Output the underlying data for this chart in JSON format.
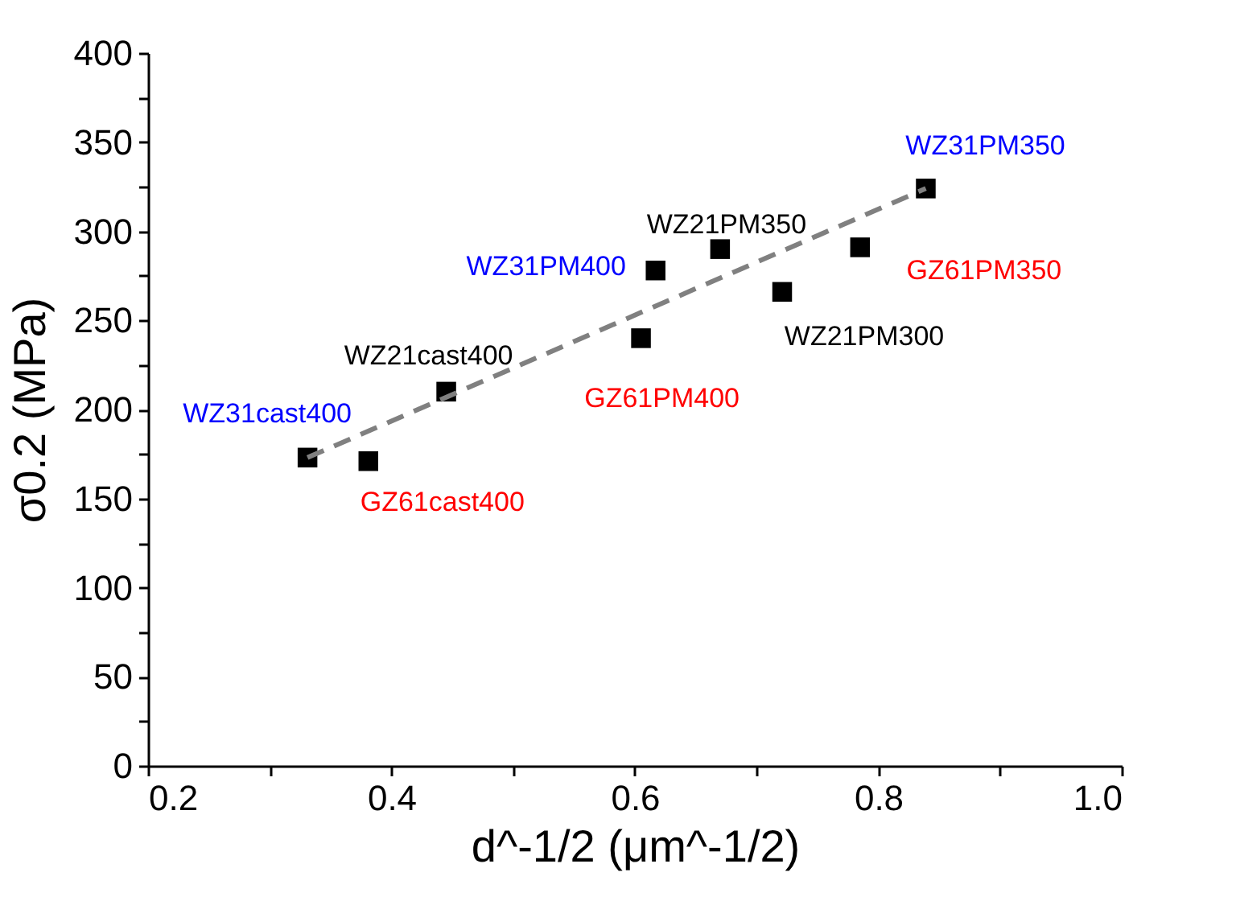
{
  "chart_data": {
    "type": "scatter",
    "xlabel": "d^-1/2 (μm^-1/2)",
    "ylabel": "σ0.2 (MPa)",
    "xlim": [
      0.2,
      1.0
    ],
    "ylim": [
      0,
      400
    ],
    "xticks": [
      {
        "value": 0.2,
        "label": "0.2"
      },
      {
        "value": 0.3,
        "label": null
      },
      {
        "value": 0.4,
        "label": "0.4"
      },
      {
        "value": 0.5,
        "label": null
      },
      {
        "value": 0.6,
        "label": "0.6"
      },
      {
        "value": 0.7,
        "label": null
      },
      {
        "value": 0.8,
        "label": "0.8"
      },
      {
        "value": 0.9,
        "label": null
      },
      {
        "value": 1.0,
        "label": "1.0"
      }
    ],
    "yticks": [
      0,
      {
        "value": 25,
        "label": null
      },
      50,
      {
        "value": 75,
        "label": null
      },
      100,
      {
        "value": 125,
        "label": null
      },
      150,
      {
        "value": 175,
        "label": null
      },
      200,
      {
        "value": 225,
        "label": null
      },
      250,
      {
        "value": 275,
        "label": null
      },
      300,
      {
        "value": 325,
        "label": null
      },
      350,
      {
        "value": 375,
        "label": null
      },
      400
    ],
    "grid": false,
    "series": [
      {
        "color": "#000000",
        "marker": "square",
        "x": [
          0.331,
          0.381,
          0.445,
          0.617,
          0.67,
          0.605,
          0.721,
          0.785,
          0.839
        ],
        "values": [
          173,
          171,
          210,
          278,
          290,
          240,
          266,
          291,
          324
        ]
      },
      {
        "type": "line",
        "color": "#808080",
        "line_style": "dashed",
        "marker": "none",
        "x": [
          0.331,
          0.839
        ],
        "values": [
          173,
          324
        ]
      }
    ],
    "annotations": [
      {
        "text": "WZ31cast400",
        "x": 0.331,
        "y": 173
      },
      {
        "text": "GZ61cast400",
        "x": 0.381,
        "y": 171
      },
      {
        "text": "WZ21cast400",
        "x": 0.445,
        "y": 210
      },
      {
        "text": "WZ31PM400",
        "x": 0.617,
        "y": 278
      },
      {
        "text": "WZ21PM350",
        "x": 0.67,
        "y": 290
      },
      {
        "text": "GZ61PM400",
        "x": 0.605,
        "y": 240
      },
      {
        "text": "WZ21PM300",
        "x": 0.721,
        "y": 266
      },
      {
        "text": "GZ61PM350",
        "x": 0.785,
        "y": 291
      },
      {
        "text": "WZ31PM350",
        "x": 0.839,
        "y": 324
      }
    ]
  }
}
